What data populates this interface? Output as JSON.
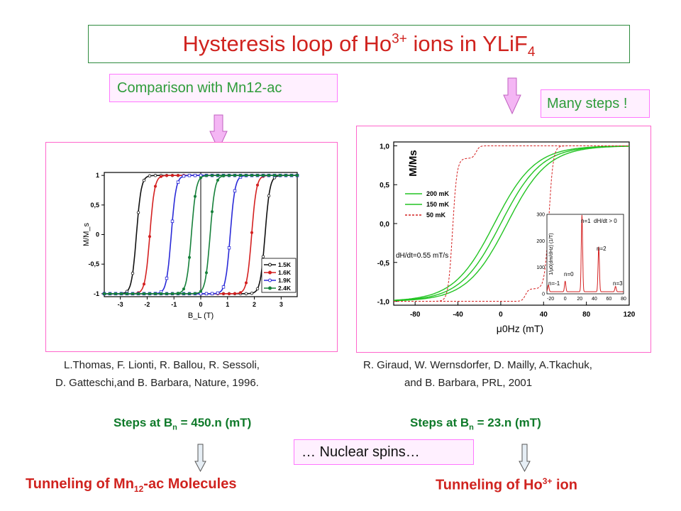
{
  "title": {
    "main": "Hysteresis  loop of Ho",
    "sup": "3+",
    "mid": " ions in YLiF",
    "sub": "4"
  },
  "comparison_label": "Comparison with Mn12-ac",
  "many_steps_label": "Many steps !",
  "left_ref": {
    "line1": "L.Thomas, F. Lionti, R. Ballou, R. Sessoli,",
    "line2": "D. Gatteschi,and B. Barbara, Nature, 1996."
  },
  "right_ref": {
    "line1": "R. Giraud, W. Wernsdorfer, D. Mailly, A.Tkachuk,",
    "line2": "and B. Barbara,  PRL, 2001"
  },
  "left_steps": {
    "prefix": "Steps  at  B",
    "sub": "n",
    "suffix": " = 450.n  (mT)"
  },
  "right_steps": {
    "prefix": "Steps  at  B",
    "sub": "n",
    "suffix": " = 23.n  (mT)"
  },
  "nuclear_label": "… Nuclear spins…",
  "left_conclusion": {
    "prefix": "Tunneling  of  Mn",
    "sub": "12",
    "suffix": "-ac  Molecules"
  },
  "right_conclusion": {
    "prefix": "Tunneling  of  Ho",
    "sup": "3+",
    "suffix": " ion"
  },
  "colors": {
    "title": "#d0231f",
    "label_green": "#2e9c3a",
    "box_border": "#ff77ff",
    "box_fill": "#fff0ff",
    "arrow_fill": "#f4b6f4",
    "arrow_small": "#e6eef5"
  },
  "chart_data": [
    {
      "type": "line",
      "xlabel": "B_L (T)",
      "ylabel": "M/M_s",
      "xlim": [
        -3.6,
        3.6
      ],
      "ylim": [
        -1.05,
        1.05
      ],
      "x_ticks": [
        "-3",
        "-2",
        "-1",
        "0",
        "1",
        "2",
        "3"
      ],
      "y_ticks": [
        "-1",
        "-0,5",
        "0",
        "0,5",
        "1"
      ],
      "legend": [
        "1.5K",
        "1.6K",
        "1.9K",
        "2.4K"
      ],
      "legend_position": "bottom-right",
      "series": [
        {
          "name": "1.5K",
          "color": "#111111",
          "coercive_field": 2.4,
          "step_fields": [
            0,
            0.45,
            0.9,
            1.35,
            1.8,
            2.25,
            2.7,
            3.15
          ]
        },
        {
          "name": "1.6K",
          "color": "#d42020",
          "coercive_field": 1.9,
          "step_fields": [
            0,
            0.45,
            0.9,
            1.35,
            1.8,
            2.25,
            2.7
          ]
        },
        {
          "name": "1.9K",
          "color": "#2a2ad8",
          "coercive_field": 1.1,
          "step_fields": [
            0,
            0.45,
            0.9,
            1.35,
            1.8
          ]
        },
        {
          "name": "2.4K",
          "color": "#16803a",
          "coercive_field": 0.35,
          "step_fields": [
            0,
            0.45,
            0.9
          ]
        }
      ]
    },
    {
      "type": "line",
      "xlabel": "μ0Hz (mT)",
      "ylabel": "M/Ms",
      "xlim": [
        -100,
        120
      ],
      "ylim": [
        -1.05,
        1.05
      ],
      "x_ticks": [
        "-80",
        "-40",
        "0",
        "40",
        "80",
        "120"
      ],
      "y_ticks": [
        "-1,0",
        "-0,5",
        "0,0",
        "0,5",
        "1,0"
      ],
      "annotation": "dH/dt=0.55 mT/s",
      "legend": [
        "200 mK",
        "150 mK",
        "50 mK"
      ],
      "legend_position": "left",
      "series": [
        {
          "name": "200 mK",
          "color": "#22c422",
          "coercive_field": 0
        },
        {
          "name": "150 mK",
          "color": "#22c422",
          "coercive_field": 6
        },
        {
          "name": "50 mK",
          "color": "#d42020",
          "coercive_field": 45
        }
      ],
      "inset": {
        "type": "line",
        "ylabel": "1/μ0(dm/dHz) (1/T)",
        "xlim": [
          -25,
          80
        ],
        "ylim": [
          0,
          300
        ],
        "x_ticks": [
          "-20",
          "0",
          "20",
          "40",
          "60",
          "80"
        ],
        "y_ticks": [
          "0",
          "100",
          "200",
          "300"
        ],
        "annotations": [
          "n=1",
          "dH/dt > 0",
          "n=2",
          "n=0",
          "n=-1",
          "n=3"
        ],
        "peaks": [
          {
            "x": -23,
            "y": 25
          },
          {
            "x": 0,
            "y": 40
          },
          {
            "x": 23,
            "y": 290
          },
          {
            "x": 46,
            "y": 170
          },
          {
            "x": 69,
            "y": 20
          }
        ]
      }
    }
  ]
}
